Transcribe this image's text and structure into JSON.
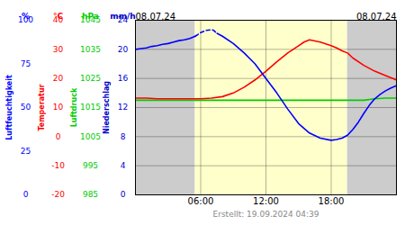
{
  "chart_data": {
    "type": "line",
    "caption": "Erstellt: 19.09.2024 04:39",
    "xlim": [
      0,
      24
    ],
    "xticks": [
      {
        "value": 6,
        "label": "06:00"
      },
      {
        "value": 12,
        "label": "12:00"
      },
      {
        "value": 18,
        "label": "18:00"
      }
    ],
    "x2ticks": [
      {
        "value": 0,
        "label": "08.07.24"
      },
      {
        "value": 24,
        "label": "08.07.24"
      }
    ],
    "ylim": [
      0,
      24
    ],
    "yticks": [
      24,
      20,
      16,
      12,
      8,
      4,
      0
    ],
    "grid": true,
    "bands": [
      {
        "x1": 0,
        "x2": 5.5,
        "color": "#cccccc"
      },
      {
        "x1": 5.5,
        "x2": 19.5,
        "color": "#ffffcc"
      },
      {
        "x1": 19.5,
        "x2": 24,
        "color": "#cccccc"
      }
    ],
    "axes": [
      {
        "label": "Luftfeuchtigkeit",
        "unit": "%",
        "color": "#0000ff",
        "ticks": [
          {
            "value": 24,
            "label": "100"
          },
          {
            "value": 18,
            "label": "75"
          },
          {
            "value": 12,
            "label": "50"
          },
          {
            "value": 6,
            "label": "25"
          },
          {
            "value": 0,
            "label": "0"
          }
        ]
      },
      {
        "label": "Temperatur",
        "unit": "°C",
        "color": "#ff0000",
        "ticks": [
          {
            "value": 24,
            "label": "40"
          },
          {
            "value": 20,
            "label": "30"
          },
          {
            "value": 16,
            "label": "20"
          },
          {
            "value": 12,
            "label": "10"
          },
          {
            "value": 8,
            "label": "0"
          },
          {
            "value": 4,
            "label": "-10"
          },
          {
            "value": 0,
            "label": "-20"
          }
        ]
      },
      {
        "label": "Luftdruck",
        "unit": "hPa",
        "color": "#00cc00",
        "ticks": [
          {
            "value": 24,
            "label": "1045"
          },
          {
            "value": 20,
            "label": "1035"
          },
          {
            "value": 16,
            "label": "1025"
          },
          {
            "value": 12,
            "label": "1015"
          },
          {
            "value": 8,
            "label": "1005"
          },
          {
            "value": 4,
            "label": "995"
          },
          {
            "value": 0,
            "label": "985"
          }
        ]
      },
      {
        "label": "Niederschlag",
        "unit": "mm/h",
        "color": "#0000cc",
        "ticks": [
          24,
          20,
          16,
          12,
          8,
          4,
          0
        ]
      }
    ],
    "series": [
      {
        "color": "#00cc00",
        "line_style": "solid",
        "x": [
          0,
          1,
          2,
          3,
          4,
          5,
          6,
          7,
          8,
          9,
          10,
          11,
          12,
          13,
          14,
          15,
          16,
          17,
          18,
          19,
          20,
          21,
          22,
          23,
          24
        ],
        "values": [
          13.0,
          13.0,
          13.0,
          13.0,
          13.0,
          13.0,
          13.0,
          13.0,
          13.0,
          13.0,
          13.0,
          13.0,
          13.0,
          13.0,
          13.0,
          13.0,
          13.0,
          13.0,
          13.0,
          13.0,
          13.0,
          13.0,
          13.2,
          13.3,
          13.3
        ]
      },
      {
        "color": "#ff0000",
        "line_style": "solid",
        "x": [
          0,
          1,
          2,
          3,
          4,
          5,
          5.5,
          6,
          7,
          8,
          9,
          10,
          11,
          12,
          13,
          14,
          15,
          15.5,
          16,
          17,
          18,
          18.5,
          19,
          19.5,
          20,
          21,
          22,
          23,
          24
        ],
        "values": [
          13.3,
          13.3,
          13.2,
          13.2,
          13.2,
          13.2,
          13.2,
          13.2,
          13.3,
          13.5,
          14.0,
          14.8,
          15.8,
          17.0,
          18.3,
          19.5,
          20.5,
          21.0,
          21.3,
          21.0,
          20.5,
          20.2,
          19.8,
          19.5,
          18.8,
          17.8,
          17.0,
          16.4,
          15.8
        ]
      },
      {
        "color": "#0000ff",
        "line_style": "solid",
        "x": [
          0,
          0.5,
          1,
          1.5,
          2,
          2.5,
          3,
          3.5,
          4,
          4.5,
          5,
          5.5
        ],
        "values": [
          20.0,
          20.1,
          20.2,
          20.4,
          20.5,
          20.7,
          20.8,
          21.0,
          21.2,
          21.3,
          21.5,
          21.8
        ]
      },
      {
        "color": "#0000ff",
        "line_style": "dashed",
        "x": [
          5.5,
          6.0,
          6.5,
          7.0,
          7.2,
          7.5
        ],
        "values": [
          21.8,
          22.3,
          22.6,
          22.7,
          22.6,
          22.2
        ]
      },
      {
        "color": "#0000ff",
        "line_style": "solid",
        "x": [
          7.5,
          8,
          9,
          10,
          11,
          12,
          13,
          14,
          15,
          16,
          17,
          18,
          18.5,
          19,
          19.5,
          20,
          20.5,
          21,
          21.5,
          22,
          22.5,
          23,
          23.5,
          24
        ],
        "values": [
          22.2,
          21.8,
          20.8,
          19.5,
          18.0,
          16.0,
          14.0,
          11.8,
          9.8,
          8.5,
          7.8,
          7.5,
          7.6,
          7.8,
          8.2,
          9.0,
          10.0,
          11.2,
          12.3,
          13.2,
          13.8,
          14.3,
          14.7,
          15.0
        ]
      }
    ]
  }
}
